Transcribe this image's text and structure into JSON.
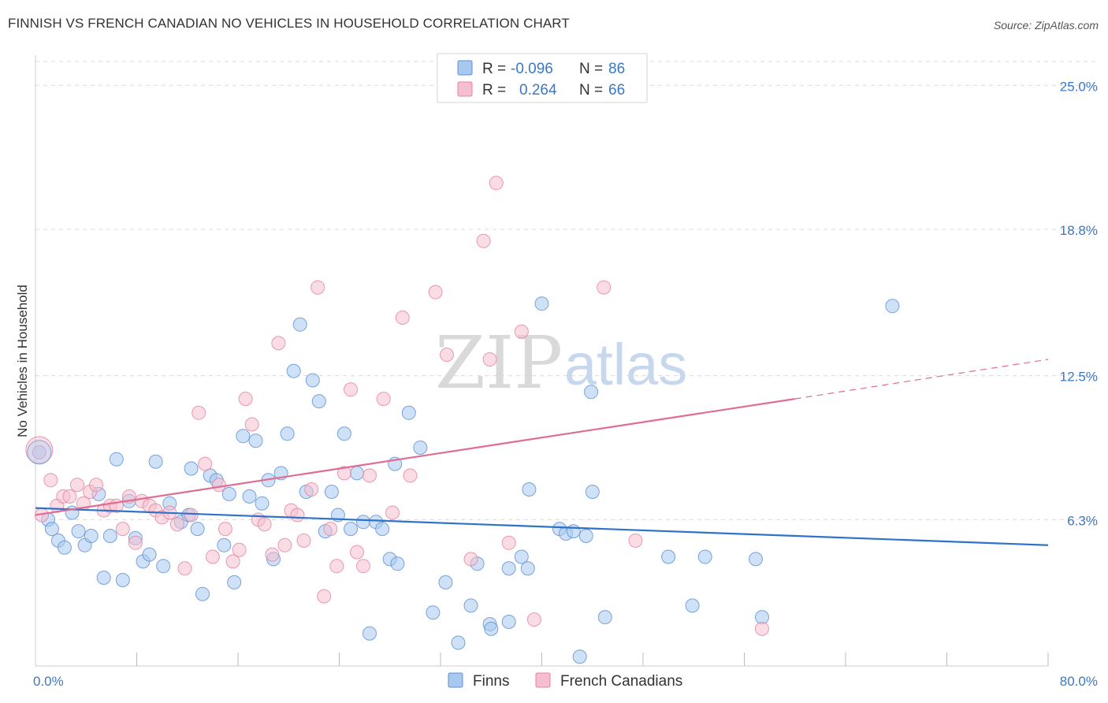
{
  "title": "FINNISH VS FRENCH CANADIAN NO VEHICLES IN HOUSEHOLD CORRELATION CHART",
  "source": "Source: ZipAtlas.com",
  "watermark": {
    "zip": "ZIP",
    "atlas": "atlas"
  },
  "colors": {
    "finns_fill": "#a8c8f0",
    "finns_stroke": "#5b8fd1",
    "finns_line": "#2f72c9",
    "french_fill": "#f6bfd0",
    "french_stroke": "#e4829f",
    "french_line": "#e06c92",
    "axis_label": "#3a78c6",
    "grid": "#d9d9d9"
  },
  "legend": {
    "r_label": "R =",
    "n_label": "N =",
    "rows": [
      {
        "r": "-0.096",
        "n": "86"
      },
      {
        "r": "0.264",
        "n": "66"
      }
    ]
  },
  "chart_data": {
    "type": "scatter",
    "title": "FINNISH VS FRENCH CANADIAN NO VEHICLES IN HOUSEHOLD CORRELATION CHART",
    "xlabel": "",
    "ylabel": "No Vehicles in Household",
    "xlim": [
      0,
      80
    ],
    "ylim": [
      0,
      26.3
    ],
    "y_ticks": [
      6.3,
      12.5,
      18.8,
      25.0
    ],
    "y_tick_labels": [
      "6.3%",
      "12.5%",
      "18.8%",
      "25.0%"
    ],
    "x_tick_labels": [
      "0.0%",
      "80.0%"
    ],
    "grid": "horizontal dashed",
    "legend_position": "top-center",
    "series": [
      {
        "name": "Finns",
        "trend": {
          "x": [
            0,
            80
          ],
          "y": [
            6.8,
            5.2
          ]
        },
        "points": [
          [
            0.3,
            9.2
          ],
          [
            1.0,
            6.3
          ],
          [
            1.3,
            5.9
          ],
          [
            1.8,
            5.4
          ],
          [
            2.3,
            5.1
          ],
          [
            2.9,
            6.6
          ],
          [
            3.4,
            5.8
          ],
          [
            3.9,
            5.2
          ],
          [
            4.4,
            5.6
          ],
          [
            5.0,
            7.4
          ],
          [
            5.4,
            3.8
          ],
          [
            5.9,
            5.6
          ],
          [
            6.4,
            8.9
          ],
          [
            6.9,
            3.7
          ],
          [
            7.4,
            7.1
          ],
          [
            7.9,
            5.5
          ],
          [
            8.5,
            4.5
          ],
          [
            9.0,
            4.8
          ],
          [
            9.5,
            8.8
          ],
          [
            10.1,
            4.3
          ],
          [
            10.6,
            7.0
          ],
          [
            11.5,
            6.2
          ],
          [
            12.1,
            6.5
          ],
          [
            12.3,
            8.5
          ],
          [
            12.8,
            5.9
          ],
          [
            13.2,
            3.1
          ],
          [
            13.8,
            8.2
          ],
          [
            14.3,
            8.0
          ],
          [
            14.9,
            5.2
          ],
          [
            15.3,
            7.4
          ],
          [
            15.7,
            3.6
          ],
          [
            16.4,
            9.9
          ],
          [
            16.9,
            7.3
          ],
          [
            17.4,
            9.7
          ],
          [
            17.9,
            7.0
          ],
          [
            18.4,
            8.0
          ],
          [
            18.8,
            4.6
          ],
          [
            19.4,
            8.3
          ],
          [
            19.9,
            10.0
          ],
          [
            20.4,
            12.7
          ],
          [
            20.9,
            14.7
          ],
          [
            21.4,
            7.5
          ],
          [
            21.9,
            12.3
          ],
          [
            22.4,
            11.4
          ],
          [
            22.9,
            5.8
          ],
          [
            23.4,
            7.5
          ],
          [
            23.9,
            6.5
          ],
          [
            24.4,
            10.0
          ],
          [
            24.9,
            5.9
          ],
          [
            25.4,
            8.3
          ],
          [
            25.9,
            6.2
          ],
          [
            26.4,
            1.4
          ],
          [
            26.9,
            6.2
          ],
          [
            27.4,
            5.9
          ],
          [
            28.0,
            4.6
          ],
          [
            28.4,
            8.7
          ],
          [
            28.6,
            4.4
          ],
          [
            29.5,
            10.9
          ],
          [
            30.4,
            9.4
          ],
          [
            31.4,
            2.3
          ],
          [
            32.4,
            3.6
          ],
          [
            33.4,
            1.0
          ],
          [
            34.4,
            2.6
          ],
          [
            34.9,
            4.4
          ],
          [
            35.9,
            1.8
          ],
          [
            36.0,
            1.6
          ],
          [
            37.4,
            1.9
          ],
          [
            37.4,
            4.2
          ],
          [
            38.4,
            4.7
          ],
          [
            38.9,
            4.2
          ],
          [
            39.0,
            7.6
          ],
          [
            40.0,
            15.6
          ],
          [
            41.4,
            5.9
          ],
          [
            41.9,
            5.7
          ],
          [
            43.0,
            0.4
          ],
          [
            43.5,
            5.6
          ],
          [
            43.9,
            11.8
          ],
          [
            44.0,
            7.5
          ],
          [
            45.0,
            2.1
          ],
          [
            50.0,
            4.7
          ],
          [
            51.9,
            2.6
          ],
          [
            52.9,
            4.7
          ],
          [
            56.9,
            4.6
          ],
          [
            57.4,
            2.1
          ],
          [
            67.7,
            15.5
          ],
          [
            42.5,
            5.8
          ]
        ]
      },
      {
        "name": "French Canadians",
        "trend": {
          "x": [
            0,
            60
          ],
          "y": [
            6.5,
            11.5
          ]
        },
        "trend_dashed": {
          "x": [
            60,
            80
          ],
          "y": [
            11.5,
            13.2
          ]
        },
        "points": [
          [
            0.5,
            6.5
          ],
          [
            1.2,
            8.0
          ],
          [
            1.7,
            6.9
          ],
          [
            2.2,
            7.3
          ],
          [
            2.7,
            7.3
          ],
          [
            3.3,
            7.8
          ],
          [
            3.8,
            7.0
          ],
          [
            4.3,
            7.5
          ],
          [
            4.8,
            7.8
          ],
          [
            5.4,
            6.7
          ],
          [
            5.9,
            6.9
          ],
          [
            6.4,
            6.9
          ],
          [
            6.9,
            5.9
          ],
          [
            7.4,
            7.3
          ],
          [
            7.9,
            5.3
          ],
          [
            8.4,
            7.1
          ],
          [
            9.0,
            6.9
          ],
          [
            9.5,
            6.7
          ],
          [
            10.0,
            6.4
          ],
          [
            10.6,
            6.6
          ],
          [
            11.2,
            6.1
          ],
          [
            11.8,
            4.2
          ],
          [
            12.3,
            6.5
          ],
          [
            12.9,
            10.9
          ],
          [
            13.4,
            8.7
          ],
          [
            14.0,
            4.7
          ],
          [
            14.5,
            7.8
          ],
          [
            15.0,
            5.9
          ],
          [
            15.6,
            4.5
          ],
          [
            16.1,
            5.0
          ],
          [
            16.6,
            11.5
          ],
          [
            17.1,
            10.4
          ],
          [
            17.6,
            6.3
          ],
          [
            18.1,
            6.1
          ],
          [
            18.7,
            4.8
          ],
          [
            19.2,
            13.9
          ],
          [
            19.7,
            5.2
          ],
          [
            20.2,
            6.7
          ],
          [
            20.7,
            6.5
          ],
          [
            21.2,
            5.4
          ],
          [
            21.8,
            7.6
          ],
          [
            22.3,
            16.3
          ],
          [
            22.8,
            3.0
          ],
          [
            23.3,
            5.9
          ],
          [
            23.8,
            4.3
          ],
          [
            24.4,
            8.3
          ],
          [
            24.9,
            11.9
          ],
          [
            25.4,
            4.9
          ],
          [
            25.9,
            4.3
          ],
          [
            26.4,
            8.2
          ],
          [
            27.5,
            11.5
          ],
          [
            29.0,
            15.0
          ],
          [
            29.6,
            8.2
          ],
          [
            31.6,
            16.1
          ],
          [
            32.5,
            13.4
          ],
          [
            34.4,
            4.6
          ],
          [
            35.4,
            18.3
          ],
          [
            35.9,
            13.2
          ],
          [
            36.4,
            20.8
          ],
          [
            37.4,
            5.3
          ],
          [
            38.4,
            14.4
          ],
          [
            39.4,
            2.0
          ],
          [
            44.9,
            16.3
          ],
          [
            47.4,
            5.4
          ],
          [
            57.4,
            1.6
          ],
          [
            28.2,
            6.6
          ]
        ]
      }
    ]
  }
}
